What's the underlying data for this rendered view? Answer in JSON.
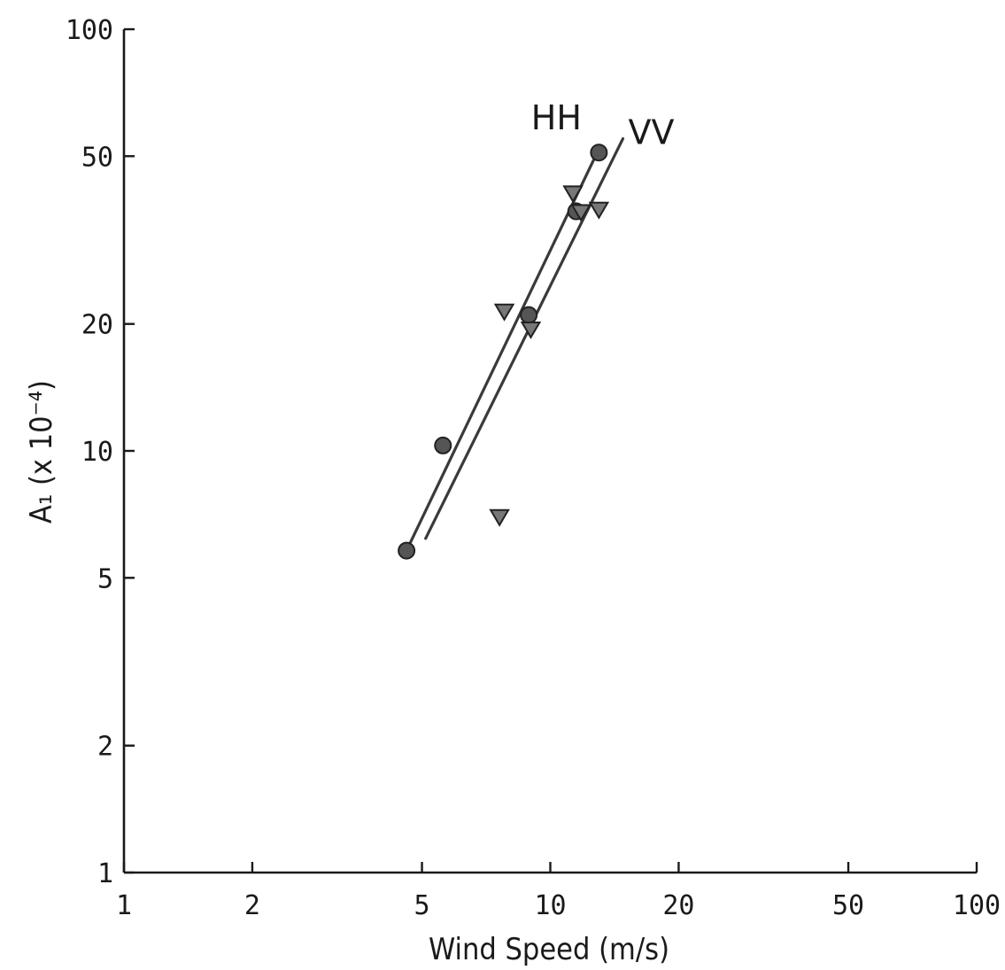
{
  "chart_data": {
    "type": "scatter",
    "xscale": "log",
    "yscale": "log",
    "xlim": [
      1,
      100
    ],
    "ylim": [
      1,
      100
    ],
    "xticks": [
      1,
      2,
      5,
      10,
      20,
      50,
      100
    ],
    "yticks": [
      1,
      2,
      5,
      10,
      20,
      50,
      100
    ],
    "xtick_labels": [
      "1",
      "2",
      "5",
      "10",
      "20",
      "50",
      "100"
    ],
    "ytick_labels": [
      "1",
      "2",
      "5",
      "10",
      "20",
      "50",
      "100"
    ],
    "xlabel": "Wind Speed (m/s)",
    "ylabel": "A₁ (x 10⁻⁴)",
    "grid": false,
    "lines": [
      {
        "name": "HH",
        "x": [
          4.6,
          13.0
        ],
        "y": [
          5.8,
          52
        ]
      },
      {
        "name": "VV",
        "x": [
          5.1,
          14.8
        ],
        "y": [
          6.2,
          55
        ]
      }
    ],
    "points": [
      {
        "marker": "circle",
        "x": 4.6,
        "y": 5.8
      },
      {
        "marker": "circle",
        "x": 5.6,
        "y": 10.3
      },
      {
        "marker": "circle",
        "x": 8.9,
        "y": 21
      },
      {
        "marker": "circle",
        "x": 11.5,
        "y": 37
      },
      {
        "marker": "circle",
        "x": 13.0,
        "y": 51
      },
      {
        "marker": "triangle",
        "x": 7.6,
        "y": 7.0
      },
      {
        "marker": "triangle",
        "x": 7.8,
        "y": 21.5
      },
      {
        "marker": "triangle",
        "x": 9.0,
        "y": 19.5
      },
      {
        "marker": "triangle",
        "x": 11.3,
        "y": 41
      },
      {
        "marker": "triangle",
        "x": 11.8,
        "y": 37
      },
      {
        "marker": "triangle",
        "x": 13.0,
        "y": 37.5
      }
    ],
    "colors": {
      "axis": "#1a1a1a",
      "line": "#3a3a3a",
      "marker": "#555555"
    }
  }
}
